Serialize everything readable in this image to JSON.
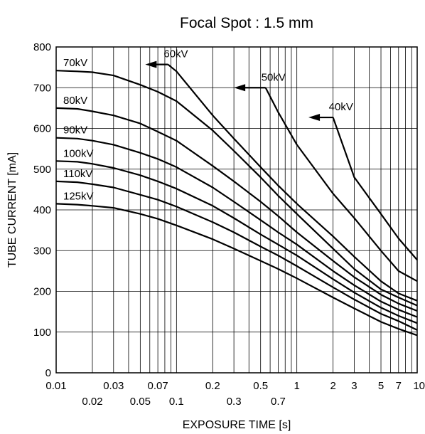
{
  "chart_data": {
    "type": "line",
    "title": "Focal Spot : 1.5 mm",
    "xlabel": "EXPOSURE TIME  [s]",
    "ylabel": "TUBE CURRENT  [mA]",
    "x_scale": "log",
    "xlim": [
      0.01,
      10
    ],
    "ylim": [
      0,
      800
    ],
    "grid": true,
    "legend": "none",
    "x_major_ticks": [
      "0.01",
      "0.03",
      "0.07",
      "0.2",
      "0.5",
      "1",
      "2",
      "3",
      "5",
      "7",
      "10"
    ],
    "x_minor_ticks": [
      "0.02",
      "0.05",
      "0.1",
      "0.3",
      "0.7"
    ],
    "y_ticks": [
      "0",
      "100",
      "200",
      "300",
      "400",
      "500",
      "600",
      "700",
      "800"
    ],
    "series": [
      {
        "name": "70kV",
        "x": [
          0.01,
          0.015,
          0.02,
          0.03,
          0.05,
          0.07,
          0.1,
          0.2,
          0.3,
          0.5,
          0.7,
          1,
          2,
          3,
          5,
          7,
          10
        ],
        "y": [
          742,
          740,
          738,
          730,
          707,
          690,
          667,
          595,
          545,
          480,
          435,
          390,
          305,
          255,
          205,
          185,
          165
        ]
      },
      {
        "name": "80kV",
        "x": [
          0.01,
          0.015,
          0.02,
          0.03,
          0.05,
          0.07,
          0.1,
          0.2,
          0.3,
          0.5,
          0.7,
          1,
          2,
          3,
          5,
          7,
          10
        ],
        "y": [
          650,
          648,
          642,
          632,
          612,
          592,
          570,
          508,
          470,
          420,
          385,
          345,
          275,
          235,
          192,
          170,
          152
        ]
      },
      {
        "name": "90kV",
        "x": [
          0.01,
          0.015,
          0.02,
          0.03,
          0.05,
          0.07,
          0.1,
          0.2,
          0.3,
          0.5,
          0.7,
          1,
          2,
          3,
          5,
          7,
          10
        ],
        "y": [
          577,
          575,
          570,
          560,
          540,
          525,
          505,
          455,
          420,
          375,
          345,
          315,
          250,
          215,
          175,
          155,
          137
        ]
      },
      {
        "name": "100kV",
        "x": [
          0.01,
          0.015,
          0.02,
          0.03,
          0.05,
          0.07,
          0.1,
          0.2,
          0.3,
          0.5,
          0.7,
          1,
          2,
          3,
          5,
          7,
          10
        ],
        "y": [
          520,
          518,
          513,
          503,
          485,
          470,
          452,
          410,
          380,
          340,
          315,
          288,
          230,
          197,
          160,
          140,
          122
        ]
      },
      {
        "name": "110kV",
        "x": [
          0.01,
          0.015,
          0.02,
          0.03,
          0.05,
          0.07,
          0.1,
          0.2,
          0.3,
          0.5,
          0.7,
          1,
          2,
          3,
          5,
          7,
          10
        ],
        "y": [
          470,
          468,
          463,
          455,
          437,
          425,
          408,
          370,
          345,
          310,
          288,
          262,
          210,
          180,
          145,
          127,
          105
        ]
      },
      {
        "name": "125kV",
        "x": [
          0.01,
          0.015,
          0.02,
          0.03,
          0.05,
          0.07,
          0.1,
          0.2,
          0.3,
          0.5,
          0.7,
          1,
          2,
          3,
          5,
          7,
          10
        ],
        "y": [
          415,
          413,
          410,
          405,
          390,
          378,
          362,
          328,
          305,
          275,
          255,
          232,
          185,
          158,
          125,
          108,
          92
        ]
      },
      {
        "name": "60kV",
        "x": [
          0.085,
          0.1,
          0.2,
          0.3,
          0.5,
          0.7,
          1,
          2,
          3,
          5,
          7,
          10
        ],
        "y": [
          757,
          740,
          632,
          575,
          505,
          460,
          415,
          335,
          285,
          225,
          195,
          177
        ]
      },
      {
        "name": "50kV",
        "x": [
          0.55,
          0.7,
          1,
          2,
          3,
          5,
          7,
          10
        ],
        "y": [
          700,
          640,
          560,
          440,
          380,
          300,
          250,
          225
        ]
      },
      {
        "name": "40kV",
        "x": [
          2,
          3,
          5,
          7,
          10
        ],
        "y": [
          627,
          480,
          390,
          330,
          277
        ]
      }
    ],
    "arrow_labels": [
      {
        "label": "60kV",
        "from": [
          0.085,
          757
        ],
        "to": [
          0.055,
          757
        ]
      },
      {
        "label": "50kV",
        "from": [
          0.55,
          700
        ],
        "to": [
          0.3,
          700
        ]
      },
      {
        "label": "40kV",
        "from": [
          2,
          627
        ],
        "to": [
          1.25,
          627
        ]
      }
    ]
  }
}
